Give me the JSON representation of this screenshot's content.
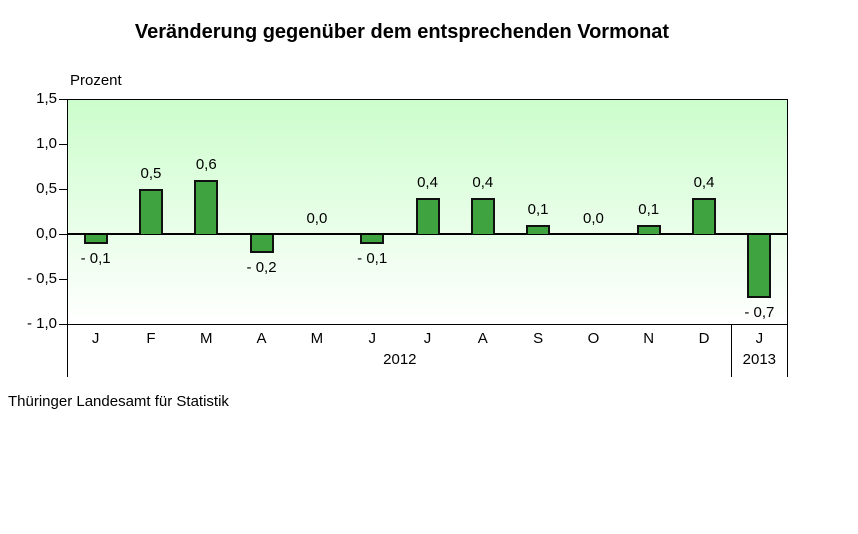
{
  "title": "Veränderung gegenüber dem entsprechenden Vormonat",
  "y_unit_label": "Prozent",
  "source": "Thüringer Landesamt für Statistik",
  "colors": {
    "bar_fill": "#3fa33f",
    "bar_border": "#101010",
    "plot_bg_top": "#ccfdcc",
    "plot_bg_bottom": "#ffffff",
    "axis": "#000000",
    "text": "#000000"
  },
  "chart_data": {
    "type": "bar",
    "title": "Veränderung gegenüber dem entsprechenden Vormonat",
    "ylabel": "Prozent",
    "xlabel": "",
    "ylim": [
      -1.0,
      1.5
    ],
    "yticks": [
      1.5,
      1.0,
      0.5,
      0.0,
      -0.5,
      -1.0
    ],
    "ytick_labels": [
      "1,5",
      "1,0",
      "0,5",
      "0,0",
      "- 0,5",
      "- 1,0"
    ],
    "categories": [
      "J",
      "F",
      "M",
      "A",
      "M",
      "J",
      "J",
      "A",
      "S",
      "O",
      "N",
      "D",
      "J"
    ],
    "year_groups": [
      {
        "label": "2012",
        "span": 12
      },
      {
        "label": "2013",
        "span": 1
      }
    ],
    "values": [
      -0.1,
      0.5,
      0.6,
      -0.2,
      0.0,
      -0.1,
      0.4,
      0.4,
      0.1,
      0.0,
      0.1,
      0.4,
      -0.7
    ],
    "value_labels": [
      "- 0,1",
      "0,5",
      "0,6",
      "- 0,2",
      "0,0",
      "- 0,1",
      "0,4",
      "0,4",
      "0,1",
      "0,0",
      "0,1",
      "0,4",
      "- 0,7"
    ],
    "grid": false,
    "legend": null,
    "bar_color": "#3fa33f"
  }
}
